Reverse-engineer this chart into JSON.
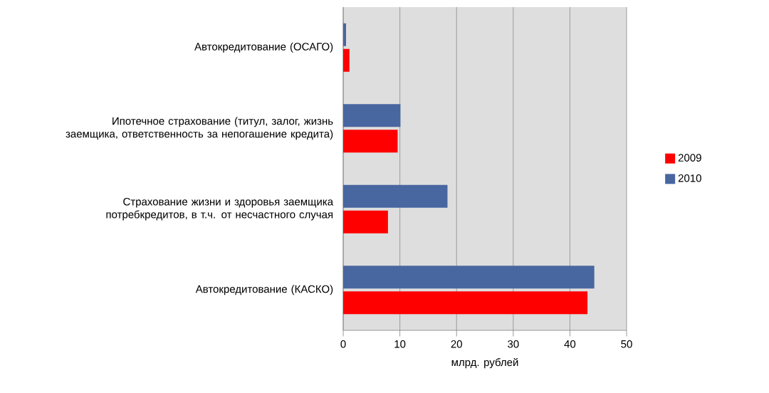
{
  "chart_data": {
    "type": "bar",
    "orientation": "horizontal",
    "categories": [
      "Автокредитование (ОСАГО)",
      "Ипотечное страхование (титул, залог, жизнь заемщика, ответственность за непогашение кредита)",
      "Страхование жизни и здоровья заемщика потребкредитов, в т.ч. от несчастного случая",
      "Автокредитование (КАСКО)"
    ],
    "series": [
      {
        "name": "2009",
        "color": "#ff0000",
        "values": [
          1.1,
          9.6,
          7.9,
          43.1
        ]
      },
      {
        "name": "2010",
        "color": "#4866a0",
        "values": [
          0.5,
          10.1,
          18.4,
          44.3
        ]
      }
    ],
    "xlabel": "млрд. рублей",
    "xlim": [
      0,
      50
    ],
    "xticks": [
      0,
      10,
      20,
      30,
      40,
      50
    ],
    "grid": "x",
    "legend": "right"
  }
}
